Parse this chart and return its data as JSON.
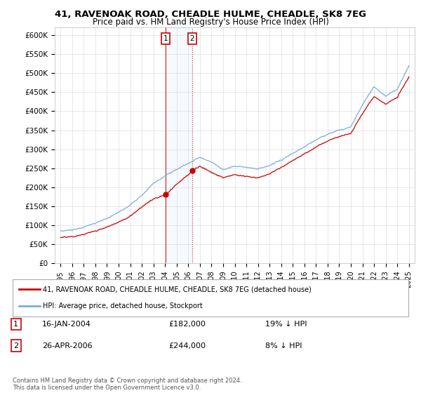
{
  "title": "41, RAVENOAK ROAD, CHEADLE HULME, CHEADLE, SK8 7EG",
  "subtitle": "Price paid vs. HM Land Registry's House Price Index (HPI)",
  "ylabel_ticks": [
    "£0",
    "£50K",
    "£100K",
    "£150K",
    "£200K",
    "£250K",
    "£300K",
    "£350K",
    "£400K",
    "£450K",
    "£500K",
    "£550K",
    "£600K"
  ],
  "ytick_values": [
    0,
    50000,
    100000,
    150000,
    200000,
    250000,
    300000,
    350000,
    400000,
    450000,
    500000,
    550000,
    600000
  ],
  "sale1": {
    "date_label": "16-JAN-2004",
    "price": 182000,
    "pct": "19% ↓ HPI",
    "x": 2004.04
  },
  "sale2": {
    "date_label": "26-APR-2006",
    "price": 244000,
    "pct": "8% ↓ HPI",
    "x": 2006.32
  },
  "house_color": "#cc0000",
  "hpi_color": "#7aaddc",
  "legend_house_label": "41, RAVENOAK ROAD, CHEADLE HULME, CHEADLE, SK8 7EG (detached house)",
  "legend_hpi_label": "HPI: Average price, detached house, Stockport",
  "footer": "Contains HM Land Registry data © Crown copyright and database right 2024.\nThis data is licensed under the Open Government Licence v3.0.",
  "xmin": 1994.5,
  "xmax": 2025.5,
  "ymin": 0,
  "ymax": 620000,
  "background_color": "#ffffff",
  "grid_color": "#dddddd",
  "xticks": [
    1995,
    1996,
    1997,
    1998,
    1999,
    2000,
    2001,
    2002,
    2003,
    2004,
    2005,
    2006,
    2007,
    2008,
    2009,
    2010,
    2011,
    2012,
    2013,
    2014,
    2015,
    2016,
    2017,
    2018,
    2019,
    2020,
    2021,
    2022,
    2023,
    2024,
    2025
  ]
}
